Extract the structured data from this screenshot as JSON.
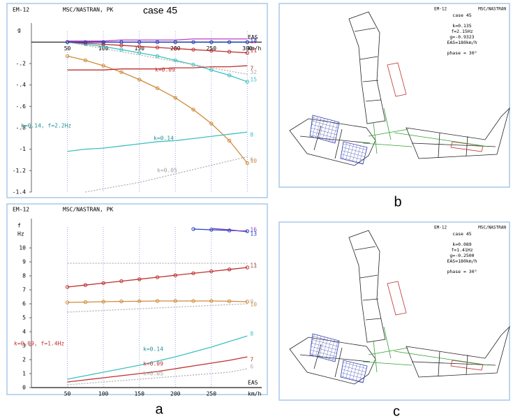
{
  "chart_data": [
    {
      "type": "line",
      "header": [
        "EM-12",
        "MSC/NASTRAN, PK"
      ],
      "title": "case 45",
      "y_label": "g",
      "x_label": "EAS",
      "x_unit": "km/h",
      "x": [
        50,
        75,
        100,
        125,
        150,
        175,
        200,
        225,
        250,
        275,
        300
      ],
      "xlim": [
        0,
        320
      ],
      "xticks": [
        50,
        100,
        150,
        200,
        250,
        300
      ],
      "ylim": [
        -1.4,
        0.1
      ],
      "yticks": [
        {
          "value": -0.2,
          "label": "-.2"
        },
        {
          "value": -0.4,
          "label": "-.4"
        },
        {
          "value": -0.6,
          "label": "-.6"
        },
        {
          "value": -0.8,
          "label": "-.8"
        },
        -1,
        -1.2,
        -1.4
      ],
      "grid": true,
      "series": [
        {
          "name": "10",
          "color": "#d08a3a",
          "marker": true,
          "values": [
            -0.13,
            -0.17,
            -0.22,
            -0.28,
            -0.35,
            -0.43,
            -0.52,
            -0.63,
            -0.76,
            -0.92,
            -1.13
          ]
        },
        {
          "name": "8",
          "color": "#40c0c0",
          "marker": false,
          "values": [
            -1.02,
            -1.0,
            -0.99,
            -0.97,
            -0.95,
            -0.93,
            -0.92,
            -0.9,
            -0.88,
            -0.86,
            -0.84
          ]
        },
        {
          "name": "15",
          "color": "#40c0c0",
          "marker": true,
          "values": [
            0,
            -0.02,
            -0.04,
            -0.07,
            -0.1,
            -0.13,
            -0.17,
            -0.21,
            -0.26,
            -0.31,
            -0.37
          ]
        },
        {
          "name": "7",
          "color": "#c03030",
          "marker": false,
          "values": [
            -0.26,
            -0.26,
            -0.26,
            -0.25,
            -0.25,
            -0.25,
            -0.24,
            -0.24,
            -0.23,
            -0.23,
            -0.22
          ]
        },
        {
          "name": "11",
          "color": "#c03030",
          "marker": true,
          "values": [
            0,
            -0.01,
            -0.02,
            -0.03,
            -0.04,
            -0.05,
            -0.06,
            -0.07,
            -0.08,
            -0.09,
            -0.1
          ]
        },
        {
          "name": "6",
          "color": "#b0b0b0",
          "marker": false,
          "values": [
            null,
            -1.4,
            -1.37,
            -1.34,
            -1.31,
            -1.27,
            -1.23,
            -1.19,
            -1.15,
            -1.11,
            -1.07
          ]
        },
        {
          "name": "32",
          "color": "#b0b0b0",
          "marker": false,
          "values": [
            0,
            -0.03,
            -0.06,
            -0.09,
            -0.12,
            -0.15,
            -0.18,
            -0.21,
            -0.24,
            -0.27,
            -0.3
          ]
        },
        {
          "name": "16",
          "color": "#c040c0",
          "marker": false,
          "values": [
            0.01,
            0.01,
            0.01,
            0.02,
            0.02,
            0.02,
            0.02,
            0.03,
            0.03,
            0.03,
            0.03
          ]
        },
        {
          "name": "13",
          "color": "#2040c0",
          "marker": true,
          "values": [
            0,
            0,
            0,
            0,
            0,
            0,
            0,
            0,
            0,
            0,
            0
          ]
        }
      ],
      "annotations": [
        {
          "text": "k=0.09",
          "color": "#c03030"
        },
        {
          "text": "k=0.14",
          "color": "#209090"
        },
        {
          "text": "k=0.05",
          "color": "#a0a0a0"
        },
        {
          "text": "k=0.14, f=2.2Hz",
          "color": "#209090"
        }
      ]
    },
    {
      "type": "line",
      "header": [
        "EM-12",
        "MSC/NASTRAN, PK"
      ],
      "y_label": "f",
      "y_unit": "Hz",
      "x_label": "EAS",
      "x_unit": "km/h",
      "x": [
        50,
        75,
        100,
        125,
        150,
        175,
        200,
        225,
        250,
        275,
        300
      ],
      "xlim": [
        0,
        320
      ],
      "xticks": [
        50,
        100,
        150,
        200,
        250
      ],
      "ylim": [
        0,
        11.5
      ],
      "yticks": [
        0,
        1,
        2,
        3,
        4,
        5,
        6,
        7,
        8,
        9,
        10
      ],
      "grid": true,
      "series": [
        {
          "name": "11",
          "color": "#c03030",
          "marker": true,
          "values": [
            7.2,
            7.34,
            7.48,
            7.62,
            7.76,
            7.9,
            8.04,
            8.18,
            8.32,
            8.46,
            8.6
          ]
        },
        {
          "name": "10",
          "color": "#d08a3a",
          "marker": true,
          "values": [
            6.1,
            6.12,
            6.15,
            6.17,
            6.18,
            6.2,
            6.2,
            6.2,
            6.2,
            6.18,
            6.15
          ]
        },
        {
          "name": "9",
          "color": "#b0b0b0",
          "marker": false,
          "values": [
            5.4,
            5.46,
            5.52,
            5.58,
            5.64,
            5.7,
            5.76,
            5.82,
            5.88,
            5.94,
            6.0
          ]
        },
        {
          "name": "12",
          "color": "#b0b0b0",
          "marker": false,
          "values": [
            8.9,
            8.9,
            8.9,
            8.9,
            8.9,
            8.9,
            8.9,
            8.9,
            8.9,
            8.9,
            8.9
          ]
        },
        {
          "name": "8",
          "color": "#40c0c0",
          "marker": false,
          "values": [
            0.6,
            0.85,
            1.1,
            1.35,
            1.6,
            1.9,
            2.2,
            2.55,
            2.9,
            3.3,
            3.7
          ]
        },
        {
          "name": "7",
          "color": "#c03030",
          "marker": false,
          "values": [
            0.4,
            0.55,
            0.7,
            0.85,
            1.0,
            1.15,
            1.35,
            1.55,
            1.75,
            1.95,
            2.2
          ]
        },
        {
          "name": "6",
          "color": "#b0b0b0",
          "marker": false,
          "values": [
            0.2,
            0.3,
            0.4,
            0.5,
            0.6,
            0.7,
            0.8,
            0.9,
            1.0,
            1.1,
            1.35
          ]
        },
        {
          "name": "13",
          "color": "#2040c0",
          "marker": true,
          "values": [
            null,
            null,
            null,
            null,
            null,
            null,
            null,
            11.35,
            11.3,
            11.25,
            11.2
          ]
        },
        {
          "name": "16",
          "color": "#8040c0",
          "marker": false,
          "values": [
            null,
            null,
            null,
            null,
            null,
            null,
            null,
            null,
            11.4,
            11.3,
            11.15
          ]
        }
      ],
      "annotations": [
        {
          "text": "k=0.14",
          "color": "#209090"
        },
        {
          "text": "k=0.09",
          "color": "#c03030"
        },
        {
          "text": "k=0.05",
          "color": "#a0a0a0"
        },
        {
          "text": "k=0.09, f=1.4Hz",
          "color": "#c03030"
        }
      ]
    }
  ],
  "panels": [
    {
      "label": "a"
    },
    {
      "label": "b",
      "header": [
        "EM-12",
        "MSC/NASTRAN"
      ],
      "lines": [
        "case 45",
        "k=0.135",
        "f=2.15Hz",
        "g=-0.9323",
        "EAS=180km/h",
        "phase = 30°"
      ]
    },
    {
      "label": "c",
      "header": [
        "EM-12",
        "MSC/NASTRAN"
      ],
      "lines": [
        "case 45",
        "k=0.089",
        "f=1.41Hz",
        "g=-0.2500",
        "EAS=180km/h",
        "phase = 30°"
      ]
    }
  ]
}
